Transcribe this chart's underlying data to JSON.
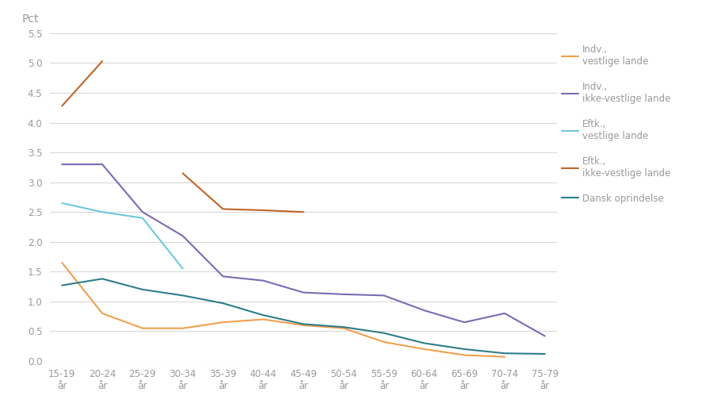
{
  "categories": [
    "15-19\når",
    "20-24\når",
    "25-29\når",
    "30-34\når",
    "35-39\når",
    "40-44\når",
    "45-49\når",
    "50-54\når",
    "55-59\når",
    "60-64\når",
    "65-69\når",
    "70-74\når",
    "75-79\når"
  ],
  "series": [
    {
      "label": "Indv.,\nvestlige lande",
      "color": "#f0a050",
      "values": [
        1.65,
        0.8,
        0.55,
        0.55,
        0.65,
        0.7,
        0.6,
        0.55,
        0.32,
        0.2,
        0.1,
        0.07,
        null
      ]
    },
    {
      "label": "Indv.,\nikke-vestlige lande",
      "color": "#7b6bb5",
      "values": [
        3.3,
        3.3,
        2.5,
        2.1,
        1.42,
        1.35,
        1.15,
        1.12,
        1.1,
        0.85,
        0.65,
        0.8,
        0.42
      ]
    },
    {
      "label": "Eftk.,\nvestlige lande",
      "color": "#6ec8e0",
      "values": [
        2.65,
        2.5,
        2.4,
        1.55,
        null,
        null,
        null,
        null,
        null,
        null,
        null,
        null,
        null
      ]
    },
    {
      "label": "Eftk.,\nikke-vestlige lande",
      "color": "#c0652a",
      "values": [
        4.28,
        5.03,
        null,
        3.15,
        2.55,
        2.53,
        2.5,
        null,
        null,
        null,
        null,
        null,
        null
      ]
    },
    {
      "label": "Dansk oprindelse",
      "color": "#2e7d8a",
      "values": [
        1.27,
        1.38,
        1.2,
        1.1,
        0.97,
        0.77,
        0.62,
        0.57,
        0.47,
        0.3,
        0.2,
        0.13,
        0.12
      ]
    }
  ],
  "ylabel": "Pct",
  "ylim": [
    0.0,
    5.5
  ],
  "yticks": [
    0.0,
    0.5,
    1.0,
    1.5,
    2.0,
    2.5,
    3.0,
    3.5,
    4.0,
    4.5,
    5.0,
    5.5
  ],
  "background_color": "#ffffff",
  "grid_color": "#d8d8d8",
  "legend_text_color": "#999999",
  "tick_color": "#999999"
}
